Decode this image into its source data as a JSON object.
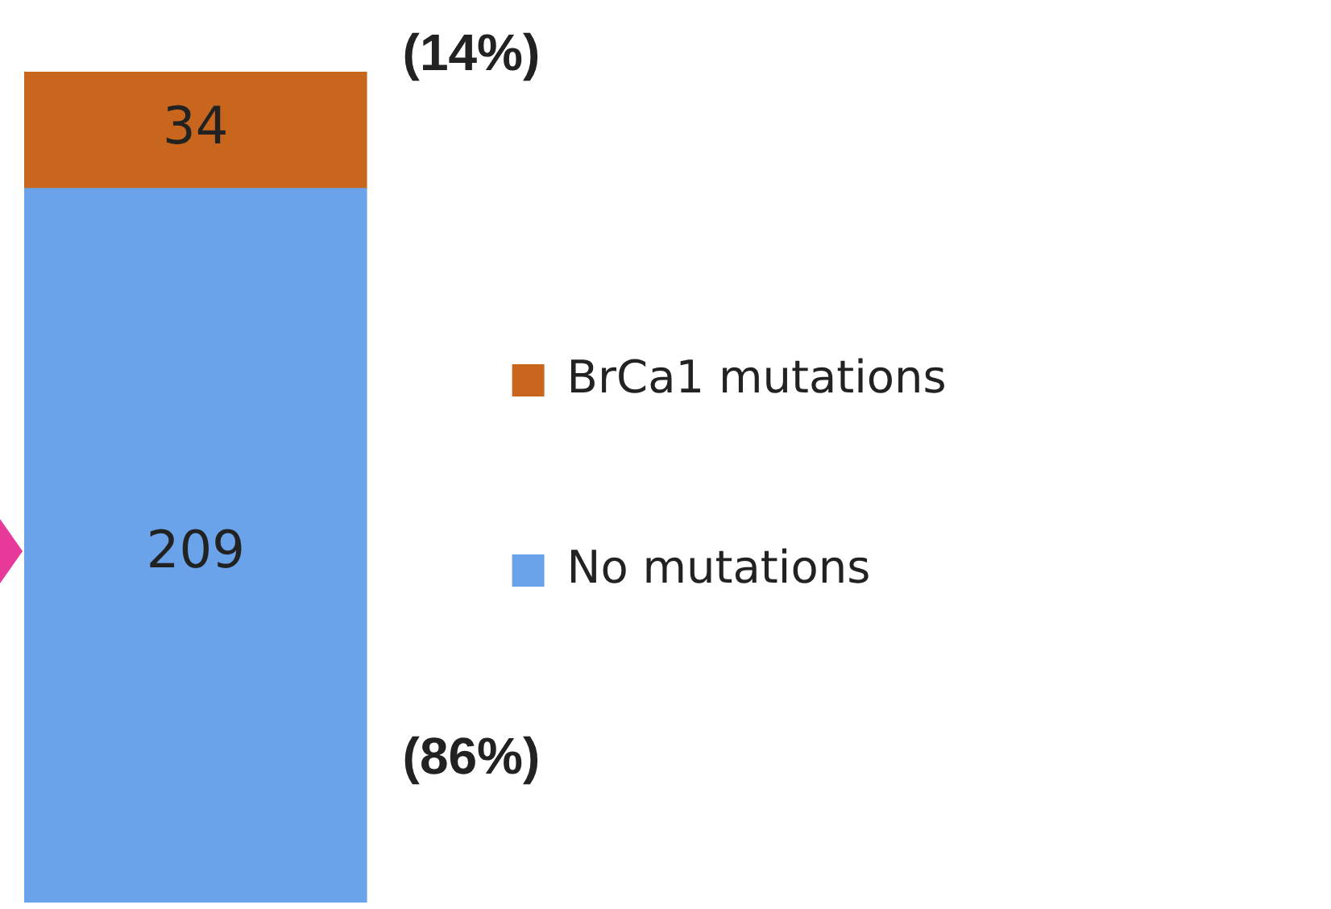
{
  "chart_data": {
    "type": "bar",
    "stacked": true,
    "categories": [
      null
    ],
    "series": [
      {
        "name": "No mutations",
        "color": "#6aa3ea",
        "values": [
          209
        ]
      },
      {
        "name": "BrCa1 mutations",
        "color": "#c8661e",
        "values": [
          34
        ]
      }
    ],
    "data_labels": true,
    "legend": "right",
    "annotations": [
      "(86%)",
      "(14%)"
    ]
  }
}
